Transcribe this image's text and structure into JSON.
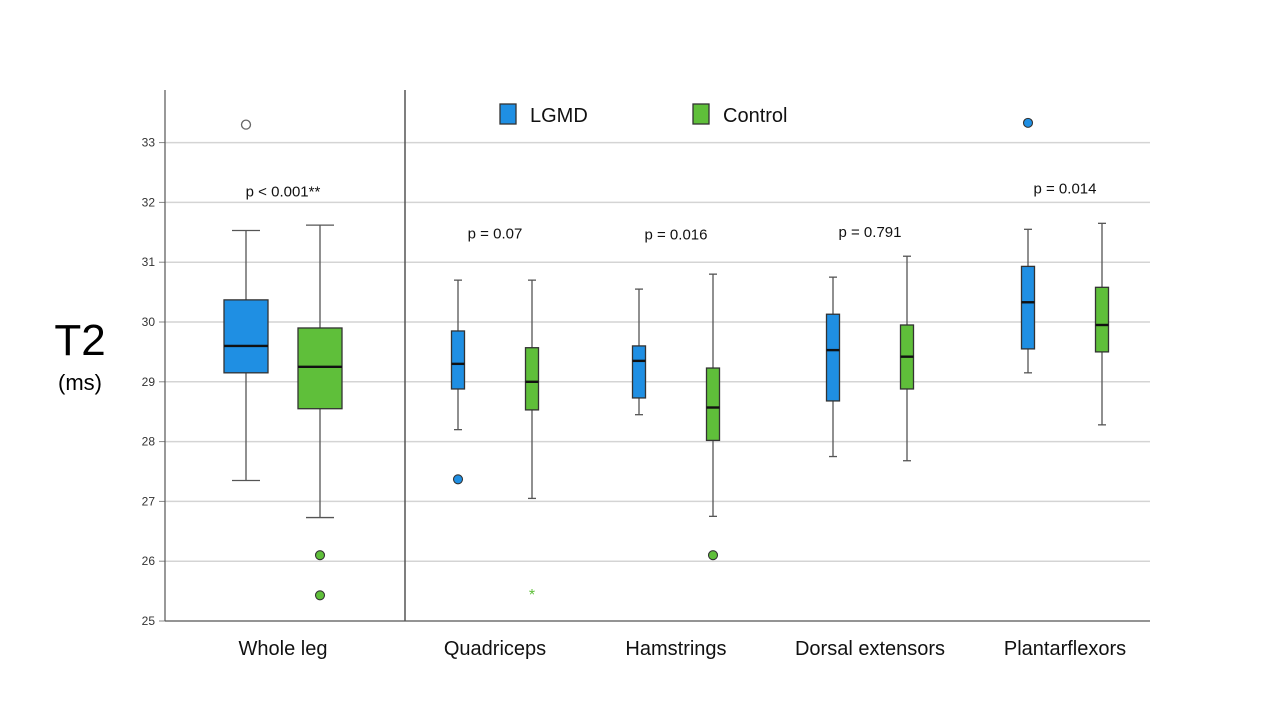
{
  "axis": {
    "y_title": "T2",
    "y_unit": "(ms)"
  },
  "legend": {
    "items": [
      {
        "label": "LGMD",
        "color": "#1f8fe3"
      },
      {
        "label": "Control",
        "color": "#5fbf3a"
      }
    ]
  },
  "chart_data": {
    "type": "boxplot",
    "title": "",
    "ylabel": "T2 (ms)",
    "ylim": [
      25,
      33.8
    ],
    "yticks": [
      25,
      26,
      27,
      28,
      29,
      30,
      31,
      32,
      33
    ],
    "grid": true,
    "categories": [
      "Whole leg",
      "Quadriceps",
      "Hamstrings",
      "Dorsal extensors",
      "Plantarflexors"
    ],
    "annotations": [
      "p < 0.001**",
      "p = 0.07",
      "p = 0.016",
      "p = 0.791",
      "p = 0.014"
    ],
    "series": [
      {
        "name": "LGMD",
        "color": "#1f8fe3",
        "boxes": [
          {
            "min": 27.35,
            "q1": 29.15,
            "median": 29.6,
            "q3": 30.37,
            "max": 31.53,
            "outliers": [
              33.3
            ],
            "outlier_style": "open"
          },
          {
            "min": 28.2,
            "q1": 28.88,
            "median": 29.3,
            "q3": 29.85,
            "max": 30.7,
            "outliers": [
              27.37
            ],
            "outlier_style": "filled"
          },
          {
            "min": 28.45,
            "q1": 28.73,
            "median": 29.35,
            "q3": 29.6,
            "max": 30.55,
            "outliers": [],
            "outlier_style": "filled"
          },
          {
            "min": 27.75,
            "q1": 28.68,
            "median": 29.53,
            "q3": 30.13,
            "max": 30.75,
            "outliers": [],
            "outlier_style": "filled"
          },
          {
            "min": 29.15,
            "q1": 29.55,
            "median": 30.33,
            "q3": 30.93,
            "max": 31.55,
            "outliers": [
              33.33
            ],
            "outlier_style": "filled"
          }
        ]
      },
      {
        "name": "Control",
        "color": "#5fbf3a",
        "boxes": [
          {
            "min": 26.73,
            "q1": 28.55,
            "median": 29.25,
            "q3": 29.9,
            "max": 31.62,
            "outliers": [
              26.1,
              25.43
            ],
            "outlier_style": "filled"
          },
          {
            "min": 27.05,
            "q1": 28.53,
            "median": 29.0,
            "q3": 29.57,
            "max": 30.7,
            "outliers": [
              25.45
            ],
            "outlier_style": "star"
          },
          {
            "min": 26.75,
            "q1": 28.02,
            "median": 28.57,
            "q3": 29.23,
            "max": 30.8,
            "outliers": [
              26.1
            ],
            "outlier_style": "filled"
          },
          {
            "min": 27.68,
            "q1": 28.88,
            "median": 29.42,
            "q3": 29.95,
            "max": 31.1,
            "outliers": [],
            "outlier_style": "filled"
          },
          {
            "min": 28.28,
            "q1": 29.5,
            "median": 29.95,
            "q3": 30.58,
            "max": 31.65,
            "outliers": [],
            "outlier_style": "filled"
          }
        ]
      }
    ]
  }
}
